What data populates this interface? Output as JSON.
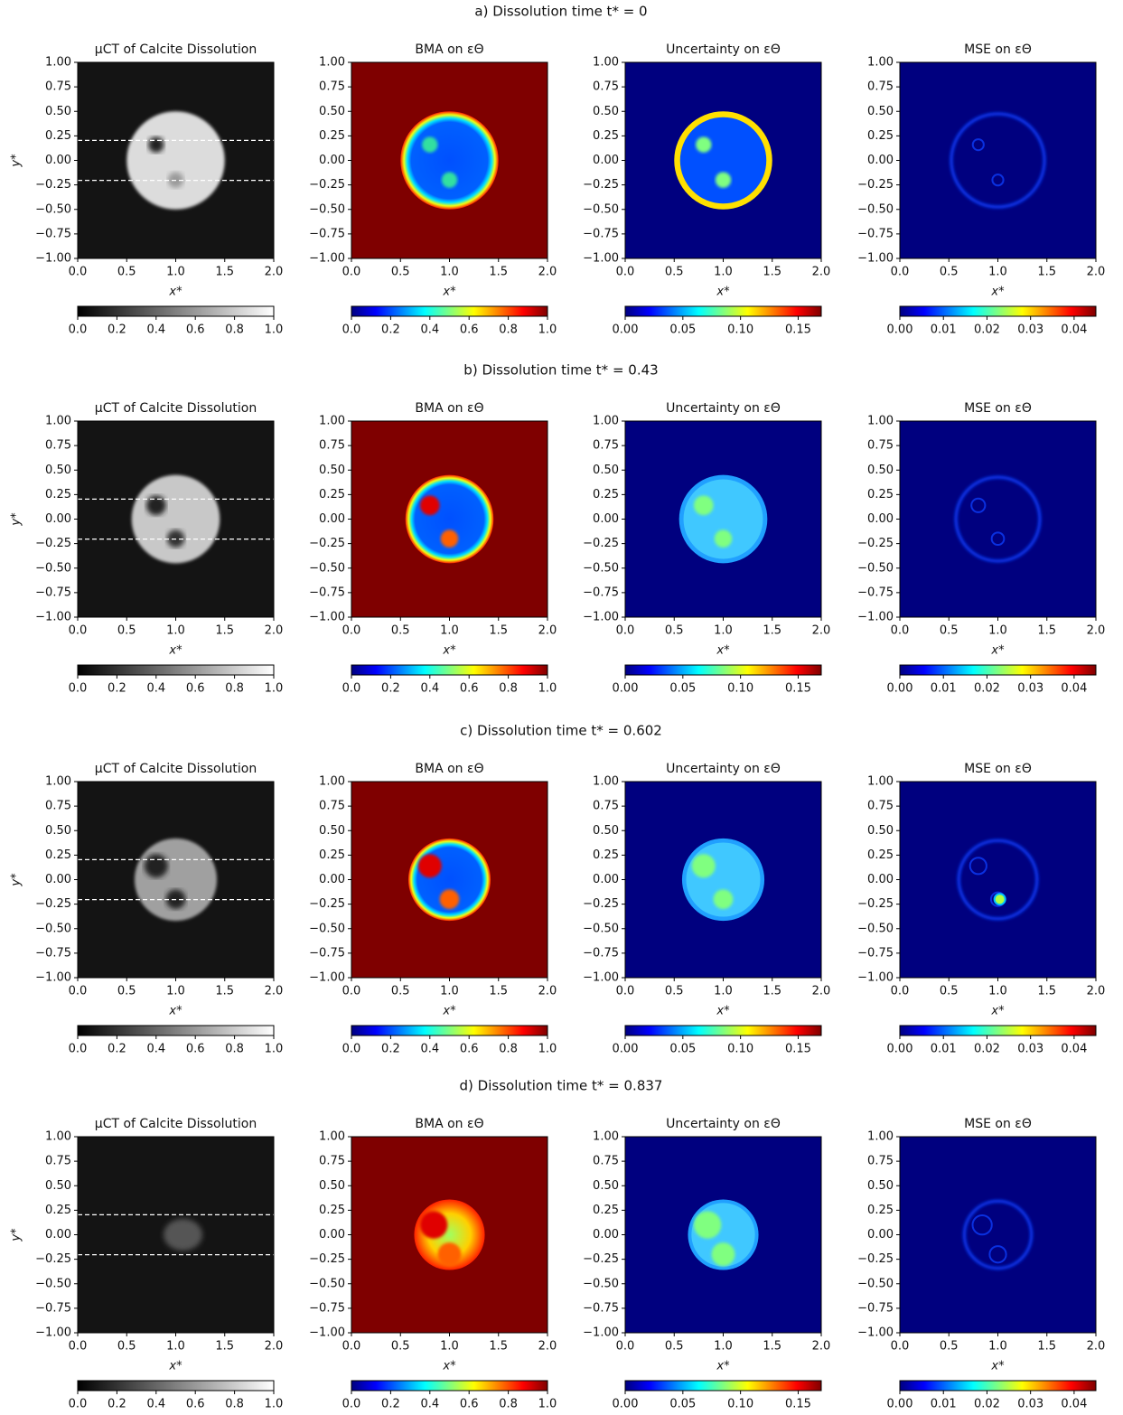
{
  "chart_data": {
    "type": "image-grid",
    "xlabel": "x*",
    "ylabel": "y*",
    "xlim": [
      0,
      2
    ],
    "ylim": [
      -1,
      1
    ],
    "xticks": [
      {
        "value": 0,
        "label": "0.0"
      },
      {
        "value": 0.5,
        "label": "0.5"
      },
      {
        "value": 1,
        "label": "1.0"
      },
      {
        "value": 1.5,
        "label": "1.5"
      },
      {
        "value": 2,
        "label": "2.0"
      }
    ],
    "yticks": [
      {
        "value": 1,
        "label": "1.00"
      },
      {
        "value": 0.75,
        "label": "0.75"
      },
      {
        "value": 0.5,
        "label": "0.50"
      },
      {
        "value": 0.25,
        "label": "0.25"
      },
      {
        "value": 0,
        "label": "0.00"
      },
      {
        "value": -0.25,
        "label": "−0.25"
      },
      {
        "value": -0.5,
        "label": "−0.50"
      },
      {
        "value": -0.75,
        "label": "−0.75"
      },
      {
        "value": -1,
        "label": "−1.00"
      }
    ],
    "rows": [
      {
        "title": "a) Dissolution time t* = 0"
      },
      {
        "title": "b) Dissolution time t* = 0.43"
      },
      {
        "title": "c) Dissolution time t* = 0.602"
      },
      {
        "title": "d) Dissolution time t* = 0.837"
      }
    ],
    "columns": [
      {
        "title": "μCT of Calcite Dissolution",
        "colormap": "gray",
        "clim": [
          0,
          1
        ],
        "cticks": [
          {
            "value": 0,
            "label": "0.0"
          },
          {
            "value": 0.2,
            "label": "0.2"
          },
          {
            "value": 0.4,
            "label": "0.4"
          },
          {
            "value": 0.6,
            "label": "0.6"
          },
          {
            "value": 0.8,
            "label": "0.8"
          },
          {
            "value": 1,
            "label": "1.0"
          }
        ]
      },
      {
        "title": "BMA on εΘ",
        "colormap": "jet",
        "clim": [
          0,
          1
        ],
        "cticks": [
          {
            "value": 0,
            "label": "0.0"
          },
          {
            "value": 0.2,
            "label": "0.2"
          },
          {
            "value": 0.4,
            "label": "0.4"
          },
          {
            "value": 0.6,
            "label": "0.6"
          },
          {
            "value": 0.8,
            "label": "0.8"
          },
          {
            "value": 1,
            "label": "1.0"
          }
        ]
      },
      {
        "title": "Uncertainty on εΘ",
        "colormap": "jet",
        "clim": [
          0,
          0.17
        ],
        "cticks": [
          {
            "value": 0,
            "label": "0.00"
          },
          {
            "value": 0.05,
            "label": "0.05"
          },
          {
            "value": 0.1,
            "label": "0.10"
          },
          {
            "value": 0.15,
            "label": "0.15"
          }
        ]
      },
      {
        "title": "MSE on εΘ",
        "colormap": "jet",
        "clim": [
          0,
          0.045
        ],
        "cticks": [
          {
            "value": 0,
            "label": "0.00"
          },
          {
            "value": 0.01,
            "label": "0.01"
          },
          {
            "value": 0.02,
            "label": "0.02"
          },
          {
            "value": 0.03,
            "label": "0.03"
          },
          {
            "value": 0.04,
            "label": "0.04"
          }
        ]
      }
    ]
  }
}
